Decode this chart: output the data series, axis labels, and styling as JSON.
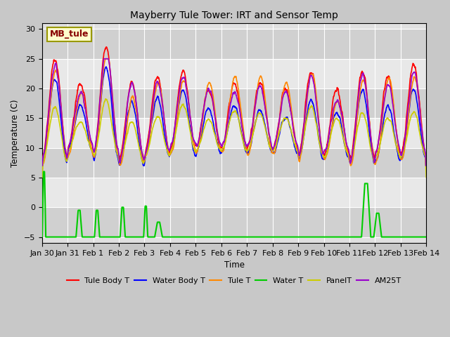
{
  "title": "Mayberry Tule Tower: IRT and Sensor Temp",
  "xlabel": "Time",
  "ylabel": "Temperature (C)",
  "ylim": [
    -6,
    31
  ],
  "xlim": [
    0,
    15
  ],
  "x_tick_labels": [
    "Jan 30",
    "Jan 31",
    "Feb 1",
    "Feb 2",
    "Feb 3",
    "Feb 4",
    "Feb 5",
    "Feb 6",
    "Feb 7",
    "Feb 8",
    "Feb 9",
    "Feb 10",
    "Feb 11",
    "Feb 12",
    "Feb 13",
    "Feb 14"
  ],
  "legend_labels": [
    "Tule Body T",
    "Water Body T",
    "Tule T",
    "Water T",
    "PanelT",
    "AM25T"
  ],
  "legend_colors": [
    "#ff0000",
    "#0000ff",
    "#ff8800",
    "#00cc00",
    "#cccc00",
    "#9900cc"
  ],
  "bg_color": "#c8c8c8",
  "plot_bg": "#e0e0e0",
  "band_color_light": "#e8e8e8",
  "band_color_dark": "#d0d0d0",
  "label_box_color": "#ffffcc",
  "label_box_edgecolor": "#999900",
  "label_text": "MB_tule",
  "num_points": 2000
}
